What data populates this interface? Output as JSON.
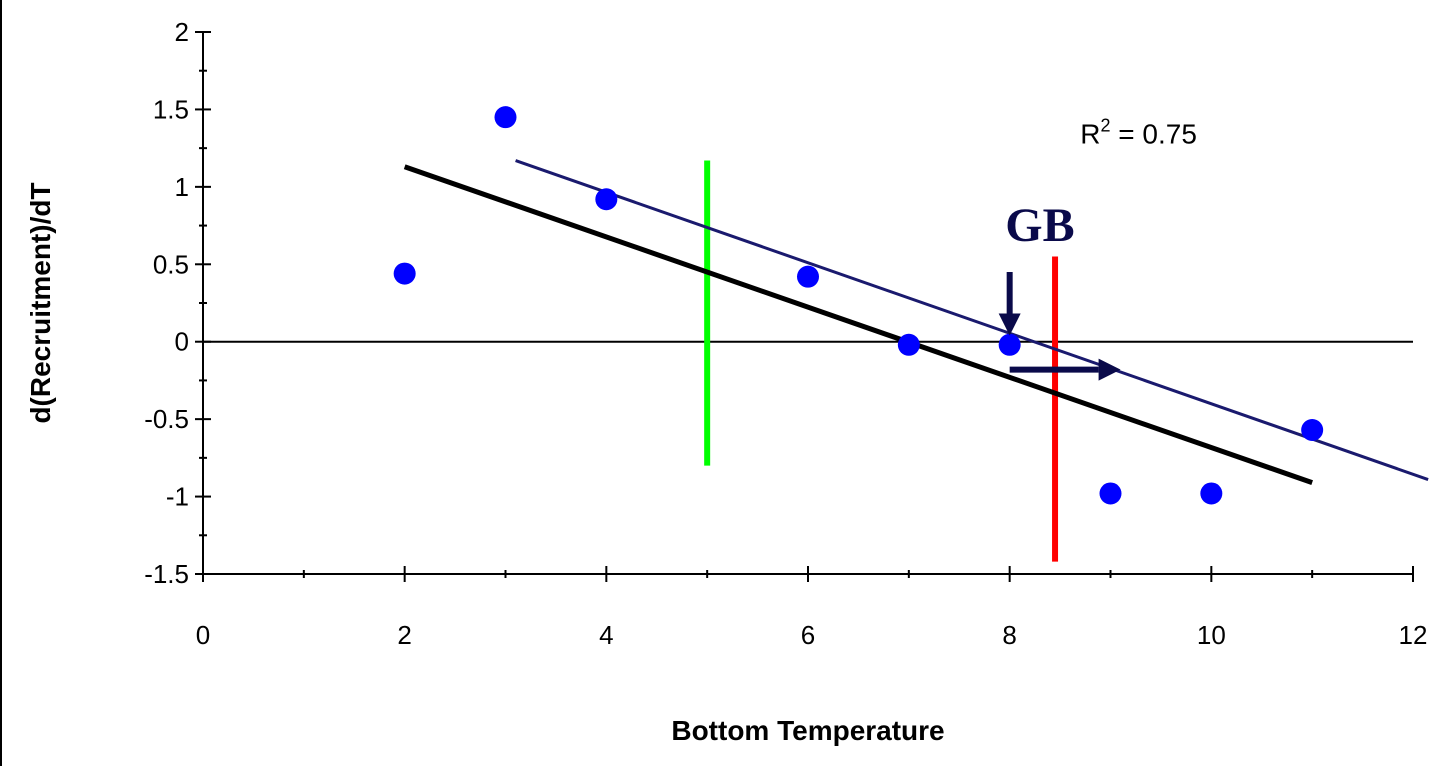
{
  "chart_data": {
    "type": "scatter",
    "title": "",
    "xlabel": "Bottom Temperature",
    "ylabel": "d(Recruitment)/dT",
    "xlim": [
      0,
      12
    ],
    "ylim": [
      -1.5,
      2
    ],
    "x_ticks": [
      0,
      2,
      4,
      6,
      8,
      10,
      12
    ],
    "y_ticks": [
      -1.5,
      -1,
      -0.5,
      0,
      0.5,
      1,
      1.5,
      2
    ],
    "x_tick_labels": [
      "0",
      "2",
      "4",
      "6",
      "8",
      "10",
      "12"
    ],
    "y_tick_labels": [
      "-1.5",
      "-1",
      "-0.5",
      "0",
      "0.5",
      "1",
      "1.5",
      "2"
    ],
    "grid": false,
    "legend": "none",
    "points": {
      "color": "#0000ff",
      "x": [
        2,
        3,
        4,
        6,
        7,
        8,
        9,
        10,
        11
      ],
      "y": [
        0.44,
        1.45,
        0.92,
        0.42,
        -0.02,
        -0.02,
        -0.98,
        -0.98,
        -0.57
      ]
    },
    "trend_lines": [
      {
        "color": "#000000",
        "x": [
          2,
          11
        ],
        "y": [
          1.13,
          -0.91
        ]
      },
      {
        "color": "#1a1a6e",
        "x": [
          3.1,
          12.15
        ],
        "y": [
          1.17,
          -0.89
        ]
      }
    ],
    "zero_line": {
      "y": 0,
      "color": "#000000"
    },
    "vertical_markers": [
      {
        "x": 5.0,
        "y_range": [
          -0.8,
          1.17
        ],
        "color": "#00ff00"
      },
      {
        "x": 8.45,
        "y_range": [
          -1.42,
          0.55
        ],
        "color": "#ff0000"
      }
    ],
    "annotations": [
      {
        "text": "R2 = 0.75",
        "main": "R",
        "sup": "2",
        "rest": " = 0.75",
        "x": 8.7,
        "y": 1.28
      },
      {
        "text": "GB",
        "x": 8.3,
        "y": 0.65
      }
    ],
    "arrows": [
      {
        "from": [
          8.0,
          0.45
        ],
        "to": [
          8.0,
          0.04
        ],
        "color": "#0a0a4a"
      },
      {
        "from": [
          8.0,
          -0.18
        ],
        "to": [
          9.1,
          -0.18
        ],
        "color": "#0a0a4a"
      }
    ]
  }
}
